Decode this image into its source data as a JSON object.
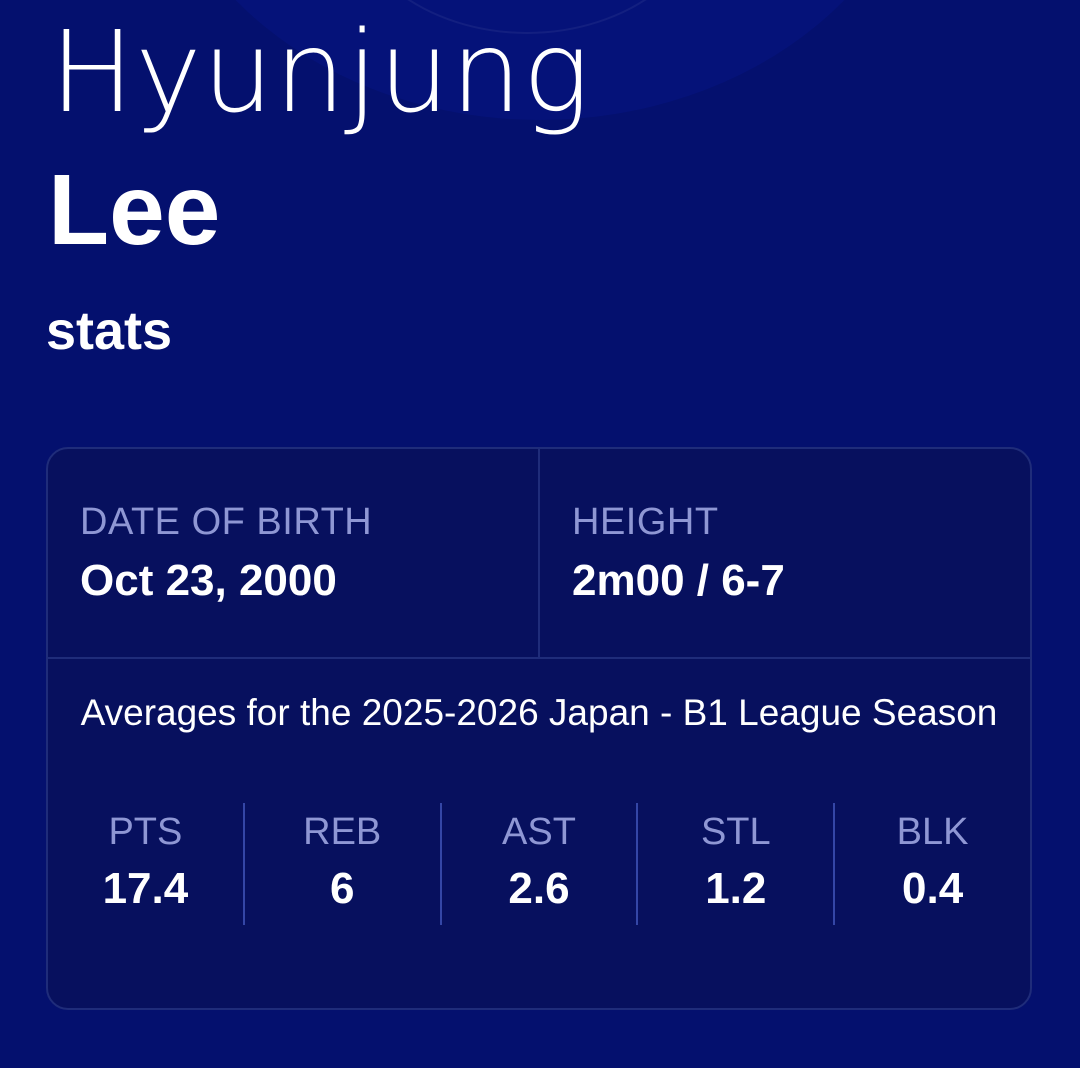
{
  "player": {
    "first_name": "Hyunjung",
    "last_name": "Lee",
    "subtitle": "stats"
  },
  "info": {
    "dob_label": "DATE OF BIRTH",
    "dob_value": "Oct 23, 2000",
    "height_label": "HEIGHT",
    "height_value": "2m00 / 6-7"
  },
  "season_text": "Averages for the 2025-2026 Japan - B1 League Season",
  "stats": [
    {
      "label": "PTS",
      "value": "17.4"
    },
    {
      "label": "REB",
      "value": "6"
    },
    {
      "label": "AST",
      "value": "2.6"
    },
    {
      "label": "STL",
      "value": "1.2"
    },
    {
      "label": "BLK",
      "value": "0.4"
    }
  ],
  "colors": {
    "background": "#04106e",
    "card": "#07105e",
    "label": "#8f97d4"
  }
}
